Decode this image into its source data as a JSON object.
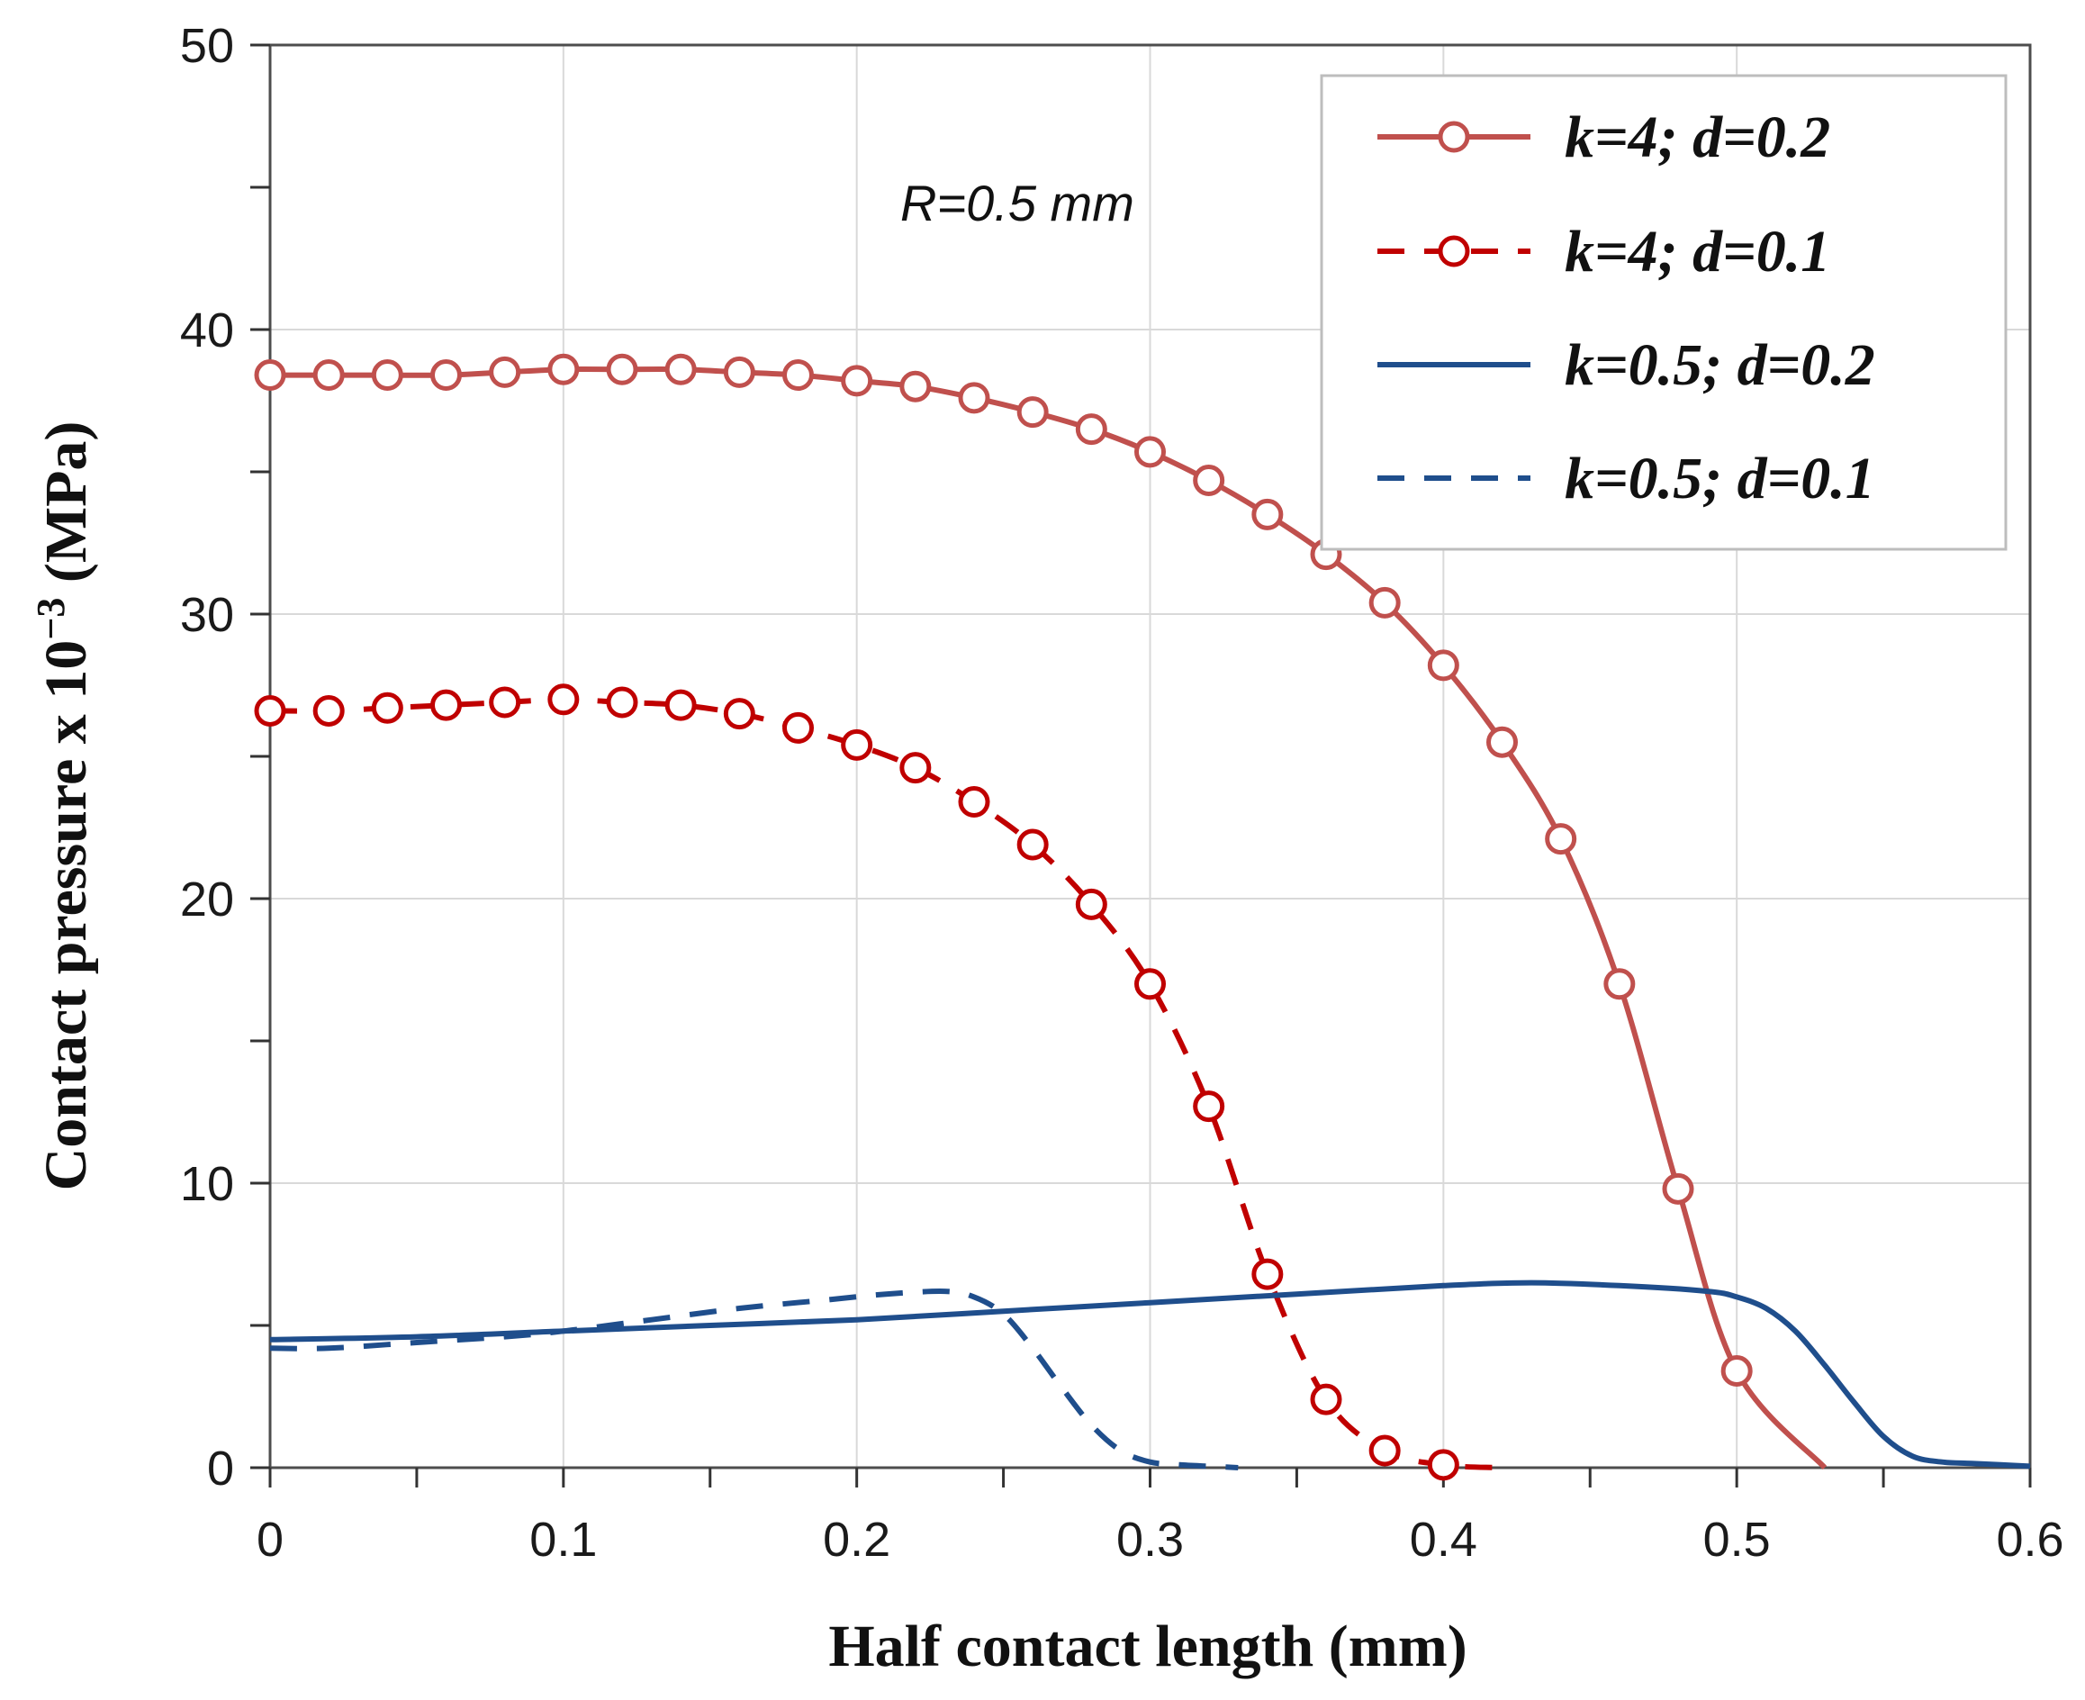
{
  "chart_data": {
    "type": "line",
    "title": "",
    "xlabel": "Half contact length (mm)",
    "ylabel_main": "Contact pressure x 10",
    "ylabel_exp": "−3",
    "ylabel_unit": " (MPa)",
    "xlim": [
      0,
      0.6
    ],
    "ylim": [
      0,
      50
    ],
    "xticks": [
      0,
      0.1,
      0.2,
      0.3,
      0.4,
      0.5,
      0.6
    ],
    "xtick_labels": [
      "0",
      "0.1",
      "0.2",
      "0.3",
      "0.4",
      "0.5",
      "0.6"
    ],
    "yticks": [
      0,
      10,
      20,
      30,
      40,
      50
    ],
    "ytick_labels": [
      "0",
      "10",
      "20",
      "30",
      "40",
      "50"
    ],
    "grid": true,
    "annotation": "R=0.5 mm",
    "legend_position": "top-right",
    "series": [
      {
        "name": "k=4; d=0.2",
        "color": "#c0504d",
        "dash": "solid",
        "markers": true,
        "x": [
          0,
          0.02,
          0.04,
          0.06,
          0.08,
          0.1,
          0.12,
          0.14,
          0.16,
          0.18,
          0.2,
          0.22,
          0.24,
          0.26,
          0.28,
          0.3,
          0.32,
          0.34,
          0.36,
          0.38,
          0.4,
          0.42,
          0.44,
          0.46,
          0.48,
          0.5,
          0.53
        ],
        "y": [
          38.4,
          38.4,
          38.4,
          38.4,
          38.5,
          38.6,
          38.6,
          38.6,
          38.5,
          38.4,
          38.2,
          38.0,
          37.6,
          37.1,
          36.5,
          35.7,
          34.7,
          33.5,
          32.1,
          30.4,
          28.2,
          25.5,
          22.1,
          17.0,
          9.8,
          3.4,
          0
        ],
        "marker_x": [
          0,
          0.02,
          0.04,
          0.06,
          0.08,
          0.1,
          0.12,
          0.14,
          0.16,
          0.18,
          0.2,
          0.22,
          0.24,
          0.26,
          0.28,
          0.3,
          0.32,
          0.34,
          0.36,
          0.38,
          0.4,
          0.42,
          0.44,
          0.46,
          0.48,
          0.5
        ],
        "marker_y": [
          38.4,
          38.4,
          38.4,
          38.4,
          38.5,
          38.6,
          38.6,
          38.6,
          38.5,
          38.4,
          38.2,
          38.0,
          37.6,
          37.1,
          36.5,
          35.7,
          34.7,
          33.5,
          32.1,
          30.4,
          28.2,
          25.5,
          22.1,
          17.0,
          9.8,
          3.4
        ]
      },
      {
        "name": "k=4; d=0.1",
        "color": "#c00000",
        "dash": "dashed",
        "markers": true,
        "x": [
          0,
          0.02,
          0.04,
          0.06,
          0.08,
          0.1,
          0.12,
          0.14,
          0.16,
          0.18,
          0.2,
          0.22,
          0.24,
          0.26,
          0.28,
          0.3,
          0.32,
          0.34,
          0.36,
          0.38,
          0.4,
          0.42
        ],
        "y": [
          26.6,
          26.6,
          26.7,
          26.8,
          26.9,
          27.0,
          26.9,
          26.8,
          26.5,
          26.0,
          25.4,
          24.6,
          23.4,
          21.9,
          19.8,
          17.0,
          12.7,
          6.8,
          2.4,
          0.6,
          0.1,
          0
        ],
        "marker_x": [
          0,
          0.02,
          0.04,
          0.06,
          0.08,
          0.1,
          0.12,
          0.14,
          0.16,
          0.18,
          0.2,
          0.22,
          0.24,
          0.26,
          0.28,
          0.3,
          0.32,
          0.34,
          0.36,
          0.38,
          0.4
        ],
        "marker_y": [
          26.6,
          26.6,
          26.7,
          26.8,
          26.9,
          27.0,
          26.9,
          26.8,
          26.5,
          26.0,
          25.4,
          24.6,
          23.4,
          21.9,
          19.8,
          17.0,
          12.7,
          6.8,
          2.4,
          0.6,
          0.1
        ]
      },
      {
        "name": "k=0.5; d=0.2",
        "color": "#1f4e8c",
        "dash": "solid",
        "markers": false,
        "x": [
          0,
          0.05,
          0.1,
          0.15,
          0.2,
          0.25,
          0.3,
          0.35,
          0.4,
          0.43,
          0.46,
          0.49,
          0.5,
          0.51,
          0.52,
          0.53,
          0.54,
          0.55,
          0.56,
          0.57,
          0.58,
          0.59,
          0.6
        ],
        "y": [
          4.5,
          4.6,
          4.8,
          5.0,
          5.2,
          5.5,
          5.8,
          6.1,
          6.4,
          6.5,
          6.4,
          6.2,
          6.0,
          5.6,
          4.8,
          3.6,
          2.3,
          1.1,
          0.4,
          0.2,
          0.15,
          0.1,
          0.05
        ]
      },
      {
        "name": "k=0.5; d=0.1",
        "color": "#1f4e8c",
        "dash": "dashed",
        "markers": false,
        "x": [
          0,
          0.02,
          0.05,
          0.08,
          0.1,
          0.13,
          0.16,
          0.19,
          0.21,
          0.23,
          0.24,
          0.25,
          0.26,
          0.27,
          0.28,
          0.29,
          0.3,
          0.31,
          0.32,
          0.33
        ],
        "y": [
          4.2,
          4.2,
          4.4,
          4.6,
          4.8,
          5.2,
          5.6,
          5.9,
          6.1,
          6.2,
          6.0,
          5.4,
          4.2,
          2.8,
          1.5,
          0.6,
          0.2,
          0.1,
          0.05,
          0
        ]
      }
    ]
  }
}
